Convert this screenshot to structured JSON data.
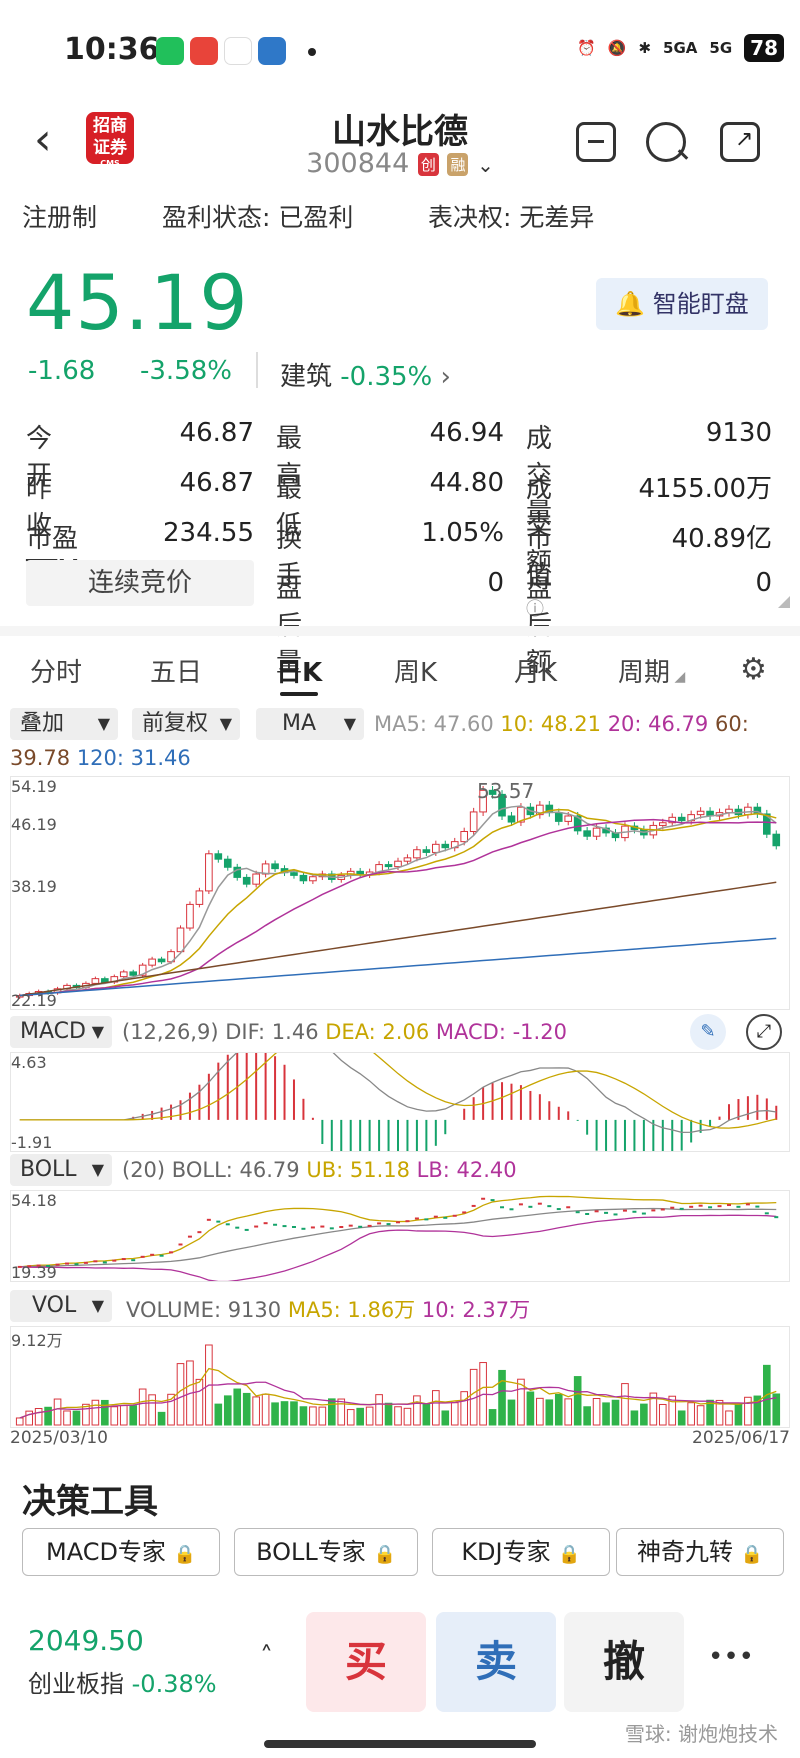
{
  "status": {
    "time": "10:36",
    "battery": "78",
    "net1": "5GA",
    "net2": "5G"
  },
  "header": {
    "title": "山水比德",
    "code": "300844",
    "badge1": "创",
    "badge2": "融",
    "logo_top": "招商",
    "logo_mid": "证券",
    "logo_small": "CMS"
  },
  "info": {
    "reg": "注册制",
    "profit": "盈利状态: 已盈利",
    "vote": "表决权: 无差异"
  },
  "quote": {
    "price": "45.19",
    "chg": "-1.68",
    "pct": "-3.58%",
    "sector": "建筑",
    "sector_pct": "-0.35%",
    "watch_label": "智能盯盘"
  },
  "stats": {
    "open_l": "今　开",
    "open_v": "46.87",
    "prev_l": "昨　收",
    "prev_v": "46.87",
    "pe_l": "市盈TTM",
    "pe_v": "234.55",
    "high_l": "最　高",
    "high_v": "46.94",
    "low_l": "最　低",
    "low_v": "44.80",
    "turn_l": "换　手",
    "turn_v": "1.05%",
    "after_vol_l": "盘后量",
    "after_vol_v": "0",
    "vol_l": "成交量",
    "vol_v": "9130",
    "amt_l": "成交额",
    "amt_v": "4155.00万",
    "cap_l": "市值",
    "cap_v": "40.89亿",
    "after_amt_l": "盘后额",
    "after_amt_v": "0",
    "bid_label": "连续竞价"
  },
  "tabs": [
    "分时",
    "五日",
    "日K",
    "周K",
    "月K",
    "周期"
  ],
  "chart_controls": {
    "overlay": "叠加",
    "adjust": "前复权",
    "ma": "MA"
  },
  "ma_text": {
    "ma5": "MA5: 47.60",
    "ma10": "10: 48.21",
    "ma20": "20: 46.79",
    "ma60a": "60:",
    "ma60b": "39.78",
    "ma120": "120: 31.46"
  },
  "k_axis": {
    "max": "54.19",
    "mid": "46.19",
    "low": "38.19",
    "min": "22.19",
    "peak": "53.57"
  },
  "macd": {
    "label": "MACD",
    "params": "(12,26,9)",
    "dif": "DIF: 1.46",
    "dea": "DEA: 2.06",
    "macd": "MACD: -1.20",
    "max": "4.63",
    "min": "-1.91"
  },
  "boll": {
    "label": "BOLL",
    "params": "(20)",
    "boll": "BOLL: 46.79",
    "ub": "UB: 51.18",
    "lb": "LB: 42.40",
    "max": "54.18",
    "min": "19.39"
  },
  "vol": {
    "label": "VOL",
    "volume": "VOLUME: 9130",
    "ma5": "MA5: 1.86万",
    "ma10": "10: 2.37万",
    "max": "9.12万"
  },
  "dates": {
    "start": "2025/03/10",
    "end": "2025/06/17"
  },
  "tools": {
    "title": "决策工具",
    "items": [
      "MACD专家",
      "BOLL专家",
      "KDJ专家",
      "神奇九转"
    ]
  },
  "bottom": {
    "index_value": "2049.50",
    "index_name": "创业板指",
    "index_pct": "-0.38%",
    "buy": "买",
    "sell": "卖",
    "cancel": "撤",
    "more": "•••"
  },
  "watermark": "雪球: 谢炮炮技术",
  "chart_data": {
    "type": "candlestick",
    "title": "",
    "x": [
      "2025/03/10",
      "2025/06/17"
    ],
    "ylim": [
      22.19,
      54.19
    ],
    "close_series": [
      23,
      23.3,
      23.6,
      23.4,
      24,
      24.5,
      24.2,
      24.8,
      25.5,
      25,
      25.8,
      26.5,
      26,
      27.5,
      28.4,
      28,
      29.5,
      33,
      36.5,
      38.5,
      44,
      43.2,
      42,
      40.5,
      39.5,
      41,
      42.5,
      41.8,
      41.2,
      40.8,
      40,
      40.6,
      41,
      40.2,
      40.8,
      41.4,
      40.9,
      41.3,
      42.4,
      42.1,
      42.9,
      43.4,
      44.6,
      44.2,
      45.4,
      44.9,
      45.8,
      47.3,
      50.2,
      53.4,
      52.8,
      49.6,
      48.7,
      50.9,
      49.8,
      51.2,
      50.1,
      48.8,
      49.6,
      47.4,
      46.6,
      47.8,
      47.1,
      46.4,
      48.1,
      47.6,
      46.8,
      48.2,
      48.6,
      49.4,
      48.9,
      49.8,
      50.3,
      49.6,
      50.1,
      50.6,
      49.8,
      50.9,
      49.9,
      46.9,
      45.19
    ]
  }
}
